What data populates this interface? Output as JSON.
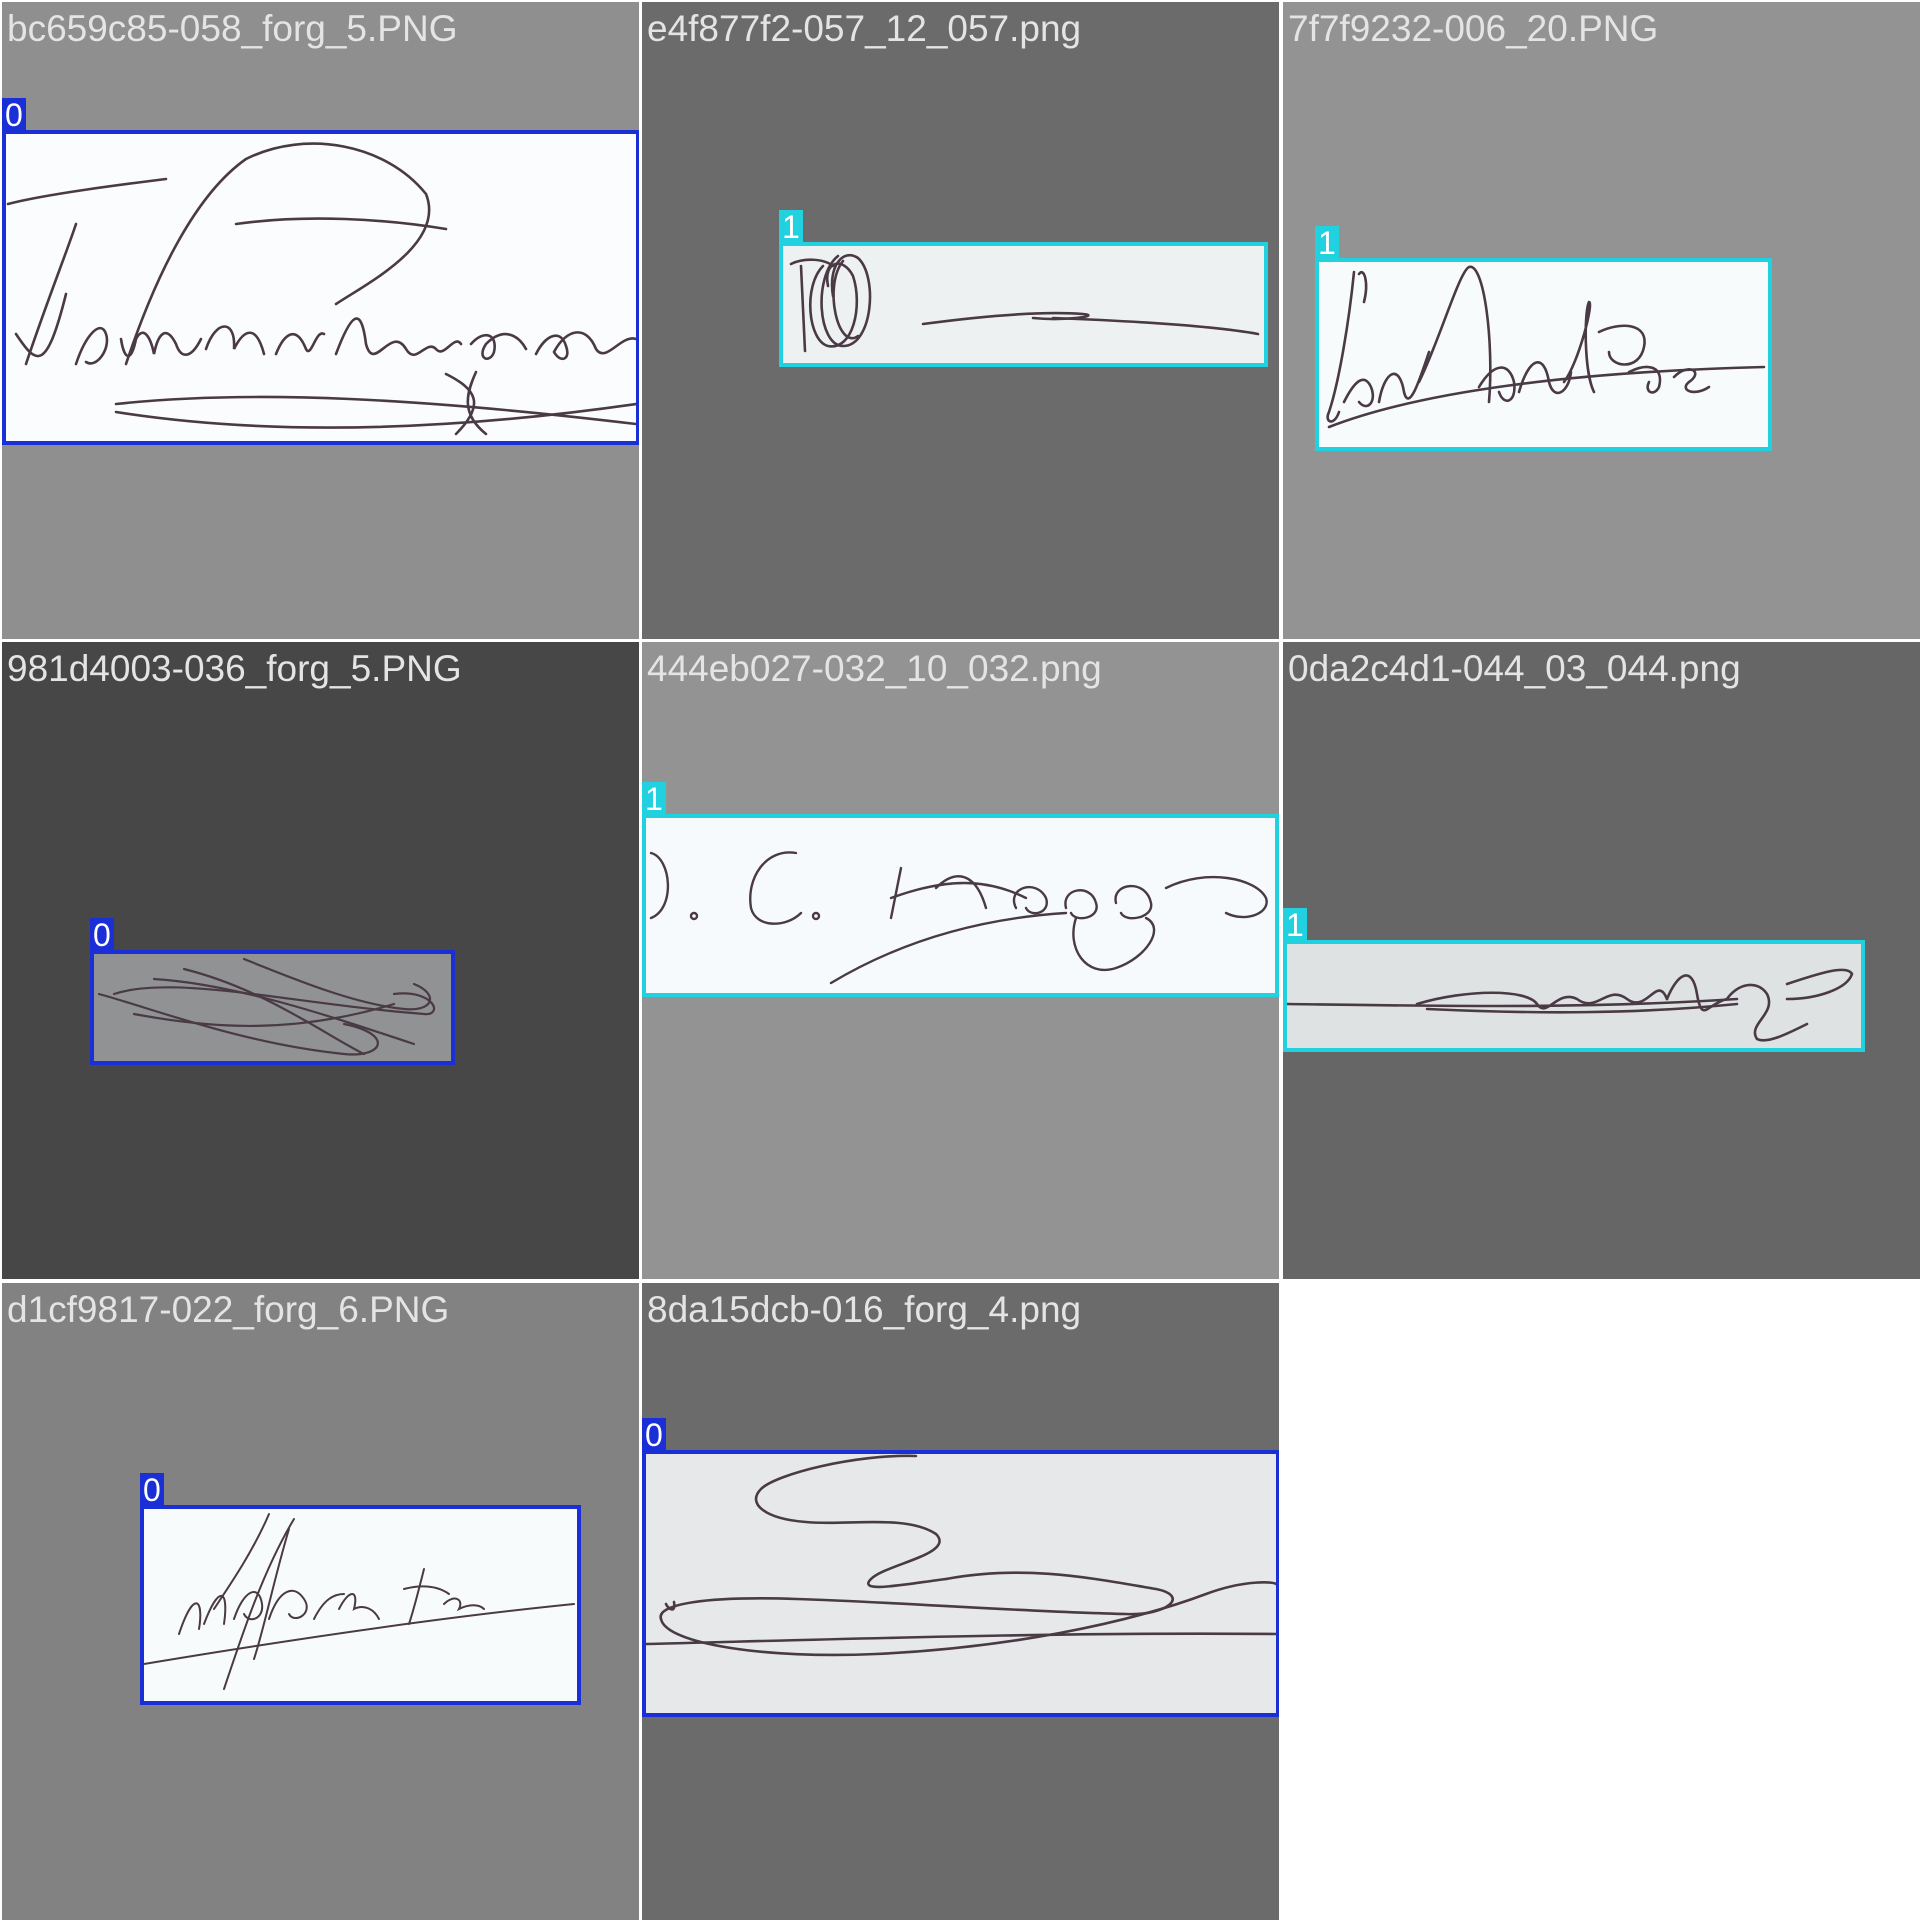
{
  "tiles": [
    {
      "filename": "bc659c85-058_forg_5.PNG",
      "background": "#8f8f8f",
      "class_label": "0",
      "paper": "#fbfcfd"
    },
    {
      "filename": "e4f877f2-057_12_057.png",
      "background": "#6b6b6b",
      "class_label": "1",
      "paper": "#eef1f1"
    },
    {
      "filename": "7f7f9232-006_20.PNG",
      "background": "#939393",
      "class_label": "1",
      "paper": "#f8fbfc"
    },
    {
      "filename": "981d4003-036_forg_5.PNG",
      "background": "#474747",
      "class_label": "0",
      "paper": "#909294"
    },
    {
      "filename": "444eb027-032_10_032.png",
      "background": "#939393",
      "class_label": "1",
      "paper": "#f6fafd"
    },
    {
      "filename": "0da2c4d1-044_03_044.png",
      "background": "#666666",
      "class_label": "1",
      "paper": "#dfe2e3"
    },
    {
      "filename": "d1cf9817-022_forg_6.PNG",
      "background": "#828282",
      "class_label": "0",
      "paper": "#f8fbfc"
    },
    {
      "filename": "8da15dcb-016_forg_4.png",
      "background": "#6b6b6b",
      "class_label": "0",
      "paper": "#e6e8e9"
    }
  ],
  "class_colors": {
    "0": "#1a2fd6",
    "1": "#22d1e0"
  },
  "ink_color": "#4a3a44"
}
